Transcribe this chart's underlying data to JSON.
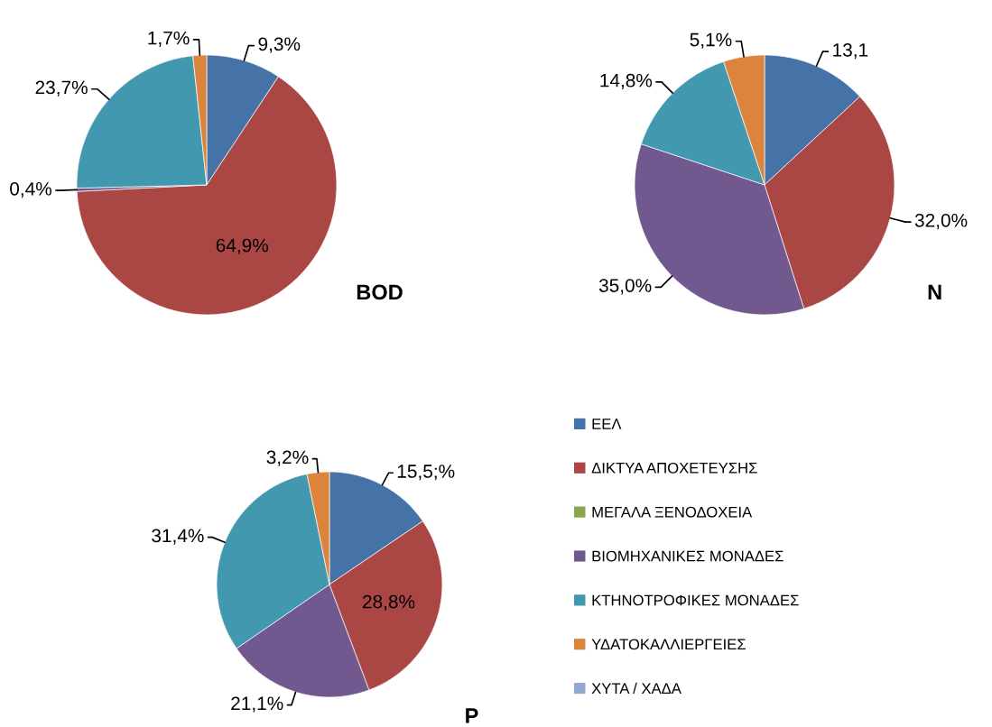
{
  "chart_data": [
    {
      "type": "pie",
      "title": "BOD",
      "categories": [
        "ΕΕΛ",
        "ΔΙΚΤΥΑ ΑΠΟΧΕΤΕΥΣΗΣ",
        "ΜΕΓΑΛΑ ΞΕΝΟΔΟΧΕΙΑ",
        "ΒΙΟΜΗΧΑΝΙΚΕΣ ΜΟΝΑΔΕΣ",
        "ΚΤΗΝΟΤΡΟΦΙΚΕΣ ΜΟΝΑΔΕΣ",
        "ΥΔΑΤΟΚΑΛΛΙΕΡΓΕΙΕΣ",
        "ΧΥΤΑ / ΧΑΔΑ"
      ],
      "values": [
        9.3,
        64.9,
        null,
        0.4,
        23.7,
        1.7,
        null
      ],
      "value_labels": [
        "9,3%",
        "64,9%",
        null,
        "0,4%",
        "23,7%",
        "1,7%",
        null
      ],
      "colors": [
        "#4572a7",
        "#aa4643",
        "#89a54e",
        "#71588f",
        "#4198af",
        "#db843d",
        "#93a9cf"
      ],
      "legend": "bottom right"
    },
    {
      "type": "pie",
      "title": "N",
      "categories": [
        null,
        null,
        null,
        null,
        null,
        null,
        null
      ],
      "values": [
        13.1,
        32.0,
        null,
        35.0,
        14.8,
        5.1,
        null
      ],
      "value_labels": [
        "13,1",
        "32,0%",
        null,
        "35,0%",
        "14,8%",
        "5,1%",
        null
      ],
      "colors": [
        "#4572a7",
        "#aa4643",
        "#89a54e",
        "#71588f",
        "#4198af",
        "#db843d",
        "#93a9cf"
      ]
    },
    {
      "type": "pie",
      "title": "P",
      "categories": [
        null,
        null,
        null,
        null,
        null,
        null,
        null
      ],
      "values": [
        15.5,
        28.8,
        null,
        21.1,
        31.4,
        3.2,
        null
      ],
      "value_labels": [
        "15,5;%",
        "28,8%",
        null,
        "21,1%",
        "31,4%",
        "3,2%",
        null
      ],
      "colors": [
        "#4572a7",
        "#aa4643",
        "#89a54e",
        "#71588f",
        "#4198af",
        "#db843d",
        "#93a9cf"
      ]
    }
  ]
}
